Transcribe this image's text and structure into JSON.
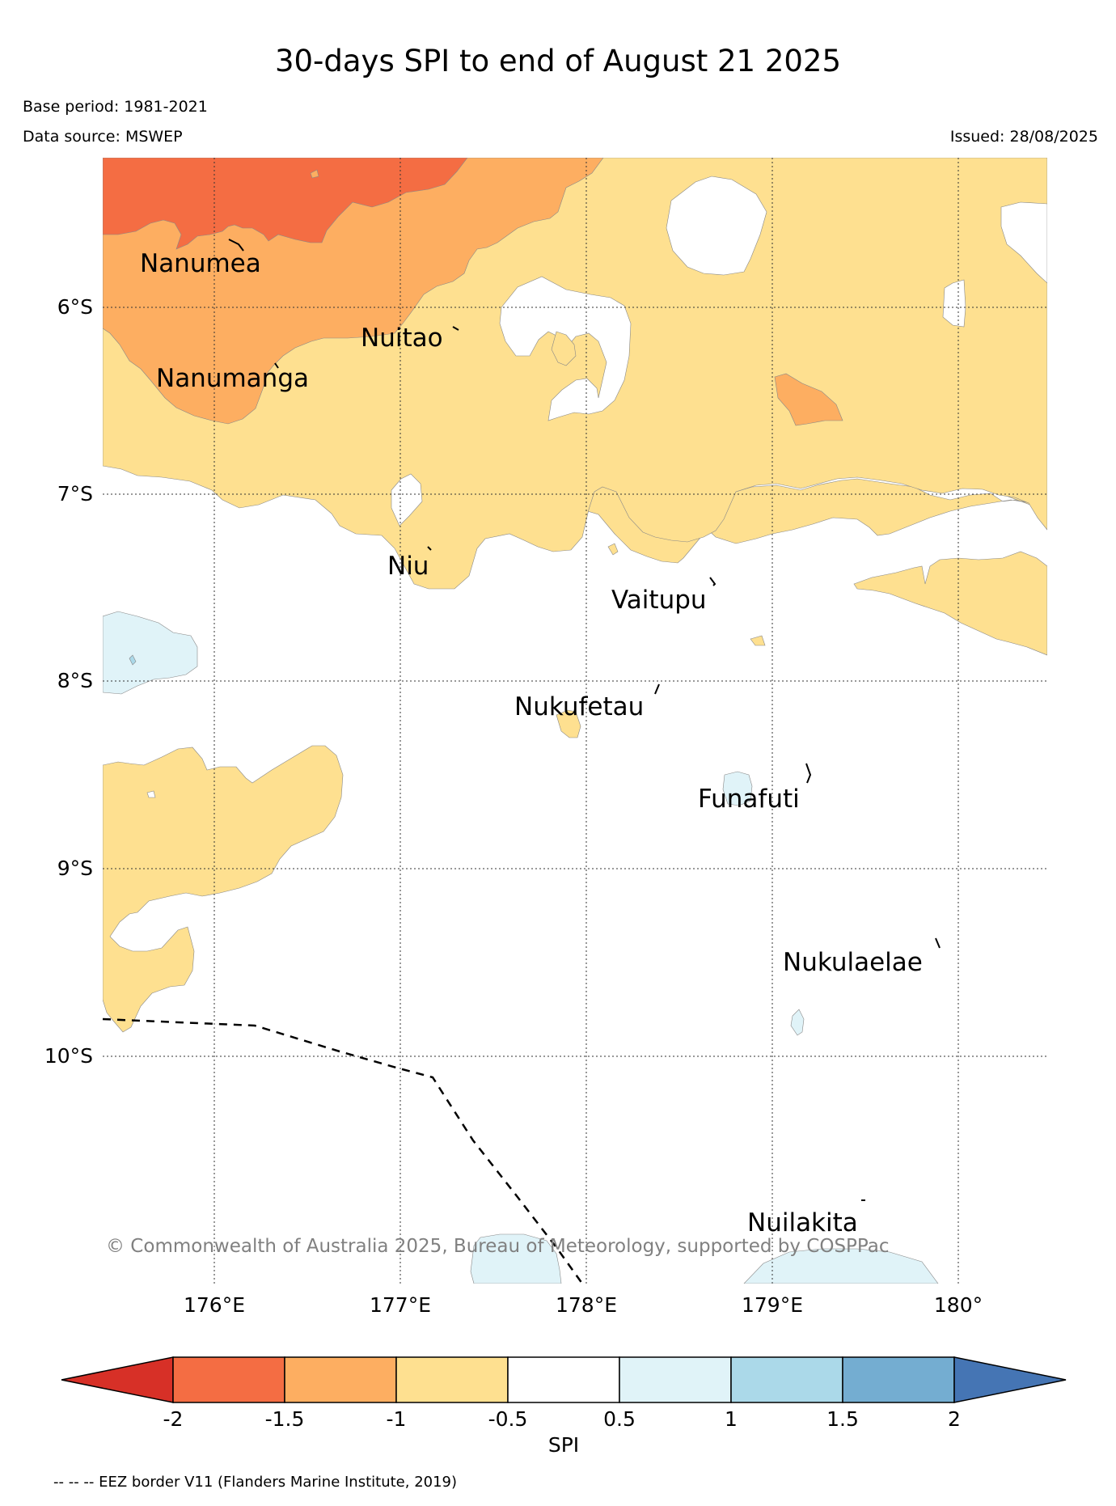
{
  "title": "30-days SPI to end of August 21 2025",
  "base_period": "Base period: 1981-2021",
  "data_source": "Data source: MSWEP",
  "issued": "Issued: 28/08/2025",
  "copyright": "© Commonwealth of Australia 2025, Bureau of Meteorology, supported by COSPPac",
  "lat_labels": [
    "6°S",
    "7°S",
    "8°S",
    "9°S",
    "10°S"
  ],
  "lon_labels": [
    "176°E",
    "177°E",
    "178°E",
    "179°E",
    "180°"
  ],
  "places": {
    "nanumea": "Nanumea",
    "nuitao": "Nuitao",
    "nanumanga": "Nanumanga",
    "niu": "Niu",
    "vaitupu": "Vaitupu",
    "nukufetau": "Nukufetau",
    "funafuti": "Funafuti",
    "nukulaelae": "Nukulaelae",
    "nuilakita": "Nuilakita"
  },
  "colorbar": {
    "title": "SPI",
    "ticks": [
      "-2",
      "-1.5",
      "-1",
      "-0.5",
      "0.5",
      "1",
      "1.5",
      "2"
    ],
    "colors": {
      "below_-2": "#d73027",
      "-2_-1.5": "#f46d43",
      "-1.5_-1": "#fdae61",
      "-1_-0.5": "#fee090",
      "-0.5_0.5": "#ffffff",
      "0.5_1": "#e0f3f8",
      "1_1.5": "#abd9e9",
      "1.5_2": "#74add1",
      "above_2": "#4575b4"
    }
  },
  "eez_note": "-- -- -- EEZ border V11 (Flanders Marine Institute, 2019)"
}
